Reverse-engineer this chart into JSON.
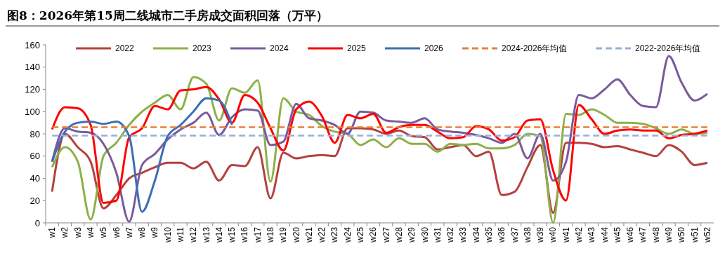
{
  "chart_data": {
    "type": "line",
    "title": "图8：2026年第15周二线城市二手房成交面积回落（万平）",
    "categories": [
      "w1",
      "w2",
      "w3",
      "w4",
      "w5",
      "w6",
      "w7",
      "w8",
      "w9",
      "w10",
      "w11",
      "w12",
      "w13",
      "w14",
      "w15",
      "w16",
      "w17",
      "w18",
      "w19",
      "w20",
      "w21",
      "w22",
      "w23",
      "w24",
      "w25",
      "w26",
      "w27",
      "w28",
      "w29",
      "w30",
      "w31",
      "w32",
      "w33",
      "w34",
      "w35",
      "w36",
      "w37",
      "w38",
      "w39",
      "w40",
      "w41",
      "w42",
      "w43",
      "w44",
      "w45",
      "w46",
      "w47",
      "w48",
      "w49",
      "w50",
      "w51",
      "w52"
    ],
    "series": [
      {
        "name": "2022",
        "color": "#b5413f",
        "values": [
          28,
          80,
          68,
          55,
          13,
          25,
          40,
          45,
          50,
          54,
          54,
          49,
          55,
          38,
          52,
          51,
          68,
          22,
          63,
          58,
          60,
          61,
          60,
          85,
          85,
          84,
          80,
          83,
          78,
          77,
          66,
          68,
          70,
          60,
          64,
          25,
          28,
          50,
          70,
          9,
          72,
          72,
          71,
          68,
          69,
          66,
          63,
          60,
          70,
          64,
          52,
          54
        ]
      },
      {
        "name": "2023",
        "color": "#8db04a",
        "values": [
          50,
          68,
          55,
          3,
          60,
          72,
          88,
          100,
          108,
          115,
          102,
          131,
          125,
          92,
          121,
          117,
          128,
          37,
          112,
          100,
          97,
          87,
          82,
          80,
          70,
          75,
          68,
          76,
          71,
          71,
          64,
          71,
          70,
          71,
          67,
          67,
          70,
          80,
          78,
          0,
          98,
          97,
          102,
          97,
          90,
          90,
          89,
          85,
          80,
          84,
          80,
          81
        ]
      },
      {
        "name": "2024",
        "color": "#7b5a9c",
        "values": [
          55,
          85,
          82,
          81,
          71,
          45,
          1,
          52,
          62,
          75,
          84,
          90,
          99,
          79,
          95,
          102,
          101,
          70,
          73,
          107,
          94,
          92,
          88,
          80,
          100,
          99,
          92,
          91,
          90,
          94,
          84,
          82,
          81,
          79,
          76,
          72,
          80,
          58,
          80,
          38,
          55,
          115,
          112,
          120,
          129,
          115,
          105,
          104,
          150,
          126,
          110,
          116
        ]
      },
      {
        "name": "2025",
        "color": "#ff0000",
        "values": [
          84,
          104,
          103,
          88,
          18,
          20,
          77,
          85,
          105,
          102,
          119,
          120,
          122,
          111,
          90,
          115,
          108,
          85,
          65,
          102,
          109,
          96,
          72,
          97,
          94,
          98,
          81,
          86,
          88,
          88,
          82,
          76,
          77,
          87,
          84,
          74,
          77,
          92,
          93,
          47,
          20,
          106,
          93,
          80,
          83,
          84,
          83,
          83,
          76,
          79,
          80,
          83
        ]
      },
      {
        "name": "2026",
        "color": "#3c6eb4",
        "values": [
          55,
          82,
          90,
          91,
          89,
          91,
          78,
          10,
          38,
          78,
          88,
          100,
          112,
          110,
          88,
          null,
          null,
          null,
          null,
          null,
          null,
          null,
          null,
          null,
          null,
          null,
          null,
          null,
          null,
          null,
          null,
          null,
          null,
          null,
          null,
          null,
          null,
          null,
          null,
          null,
          null,
          null,
          null,
          null,
          null,
          null,
          null,
          null,
          null,
          null,
          null,
          null
        ]
      },
      {
        "name": "2024-2026年均值",
        "color": "#e8803a",
        "line_style": "dashed",
        "values": [
          86,
          86,
          86,
          86,
          86,
          86,
          86,
          86,
          86,
          86,
          86,
          86,
          86,
          86,
          86,
          86,
          86,
          86,
          86,
          86,
          86,
          86,
          86,
          86,
          86,
          86,
          86,
          86,
          86,
          86,
          86,
          86,
          86,
          86,
          86,
          86,
          86,
          86,
          86,
          86,
          86,
          86,
          86,
          86,
          86,
          86,
          86,
          86,
          86,
          86,
          86,
          86
        ]
      },
      {
        "name": "2022-2026年均值",
        "color": "#98b0da",
        "line_style": "dashed",
        "values": [
          78.5,
          78.5,
          78.5,
          78.5,
          78.5,
          78.5,
          78.5,
          78.5,
          78.5,
          78.5,
          78.5,
          78.5,
          78.5,
          78.5,
          78.5,
          78.5,
          78.5,
          78.5,
          78.5,
          78.5,
          78.5,
          78.5,
          78.5,
          78.5,
          78.5,
          78.5,
          78.5,
          78.5,
          78.5,
          78.5,
          78.5,
          78.5,
          78.5,
          78.5,
          78.5,
          78.5,
          78.5,
          78.5,
          78.5,
          78.5,
          78.5,
          78.5,
          78.5,
          78.5,
          78.5,
          78.5,
          78.5,
          78.5,
          78.5,
          78.5,
          78.5,
          78.5
        ]
      }
    ],
    "ylim": [
      0,
      160
    ],
    "yticks": [
      0,
      20,
      40,
      60,
      80,
      100,
      120,
      140,
      160
    ],
    "grid": false,
    "legend": "top",
    "marker": "none"
  }
}
